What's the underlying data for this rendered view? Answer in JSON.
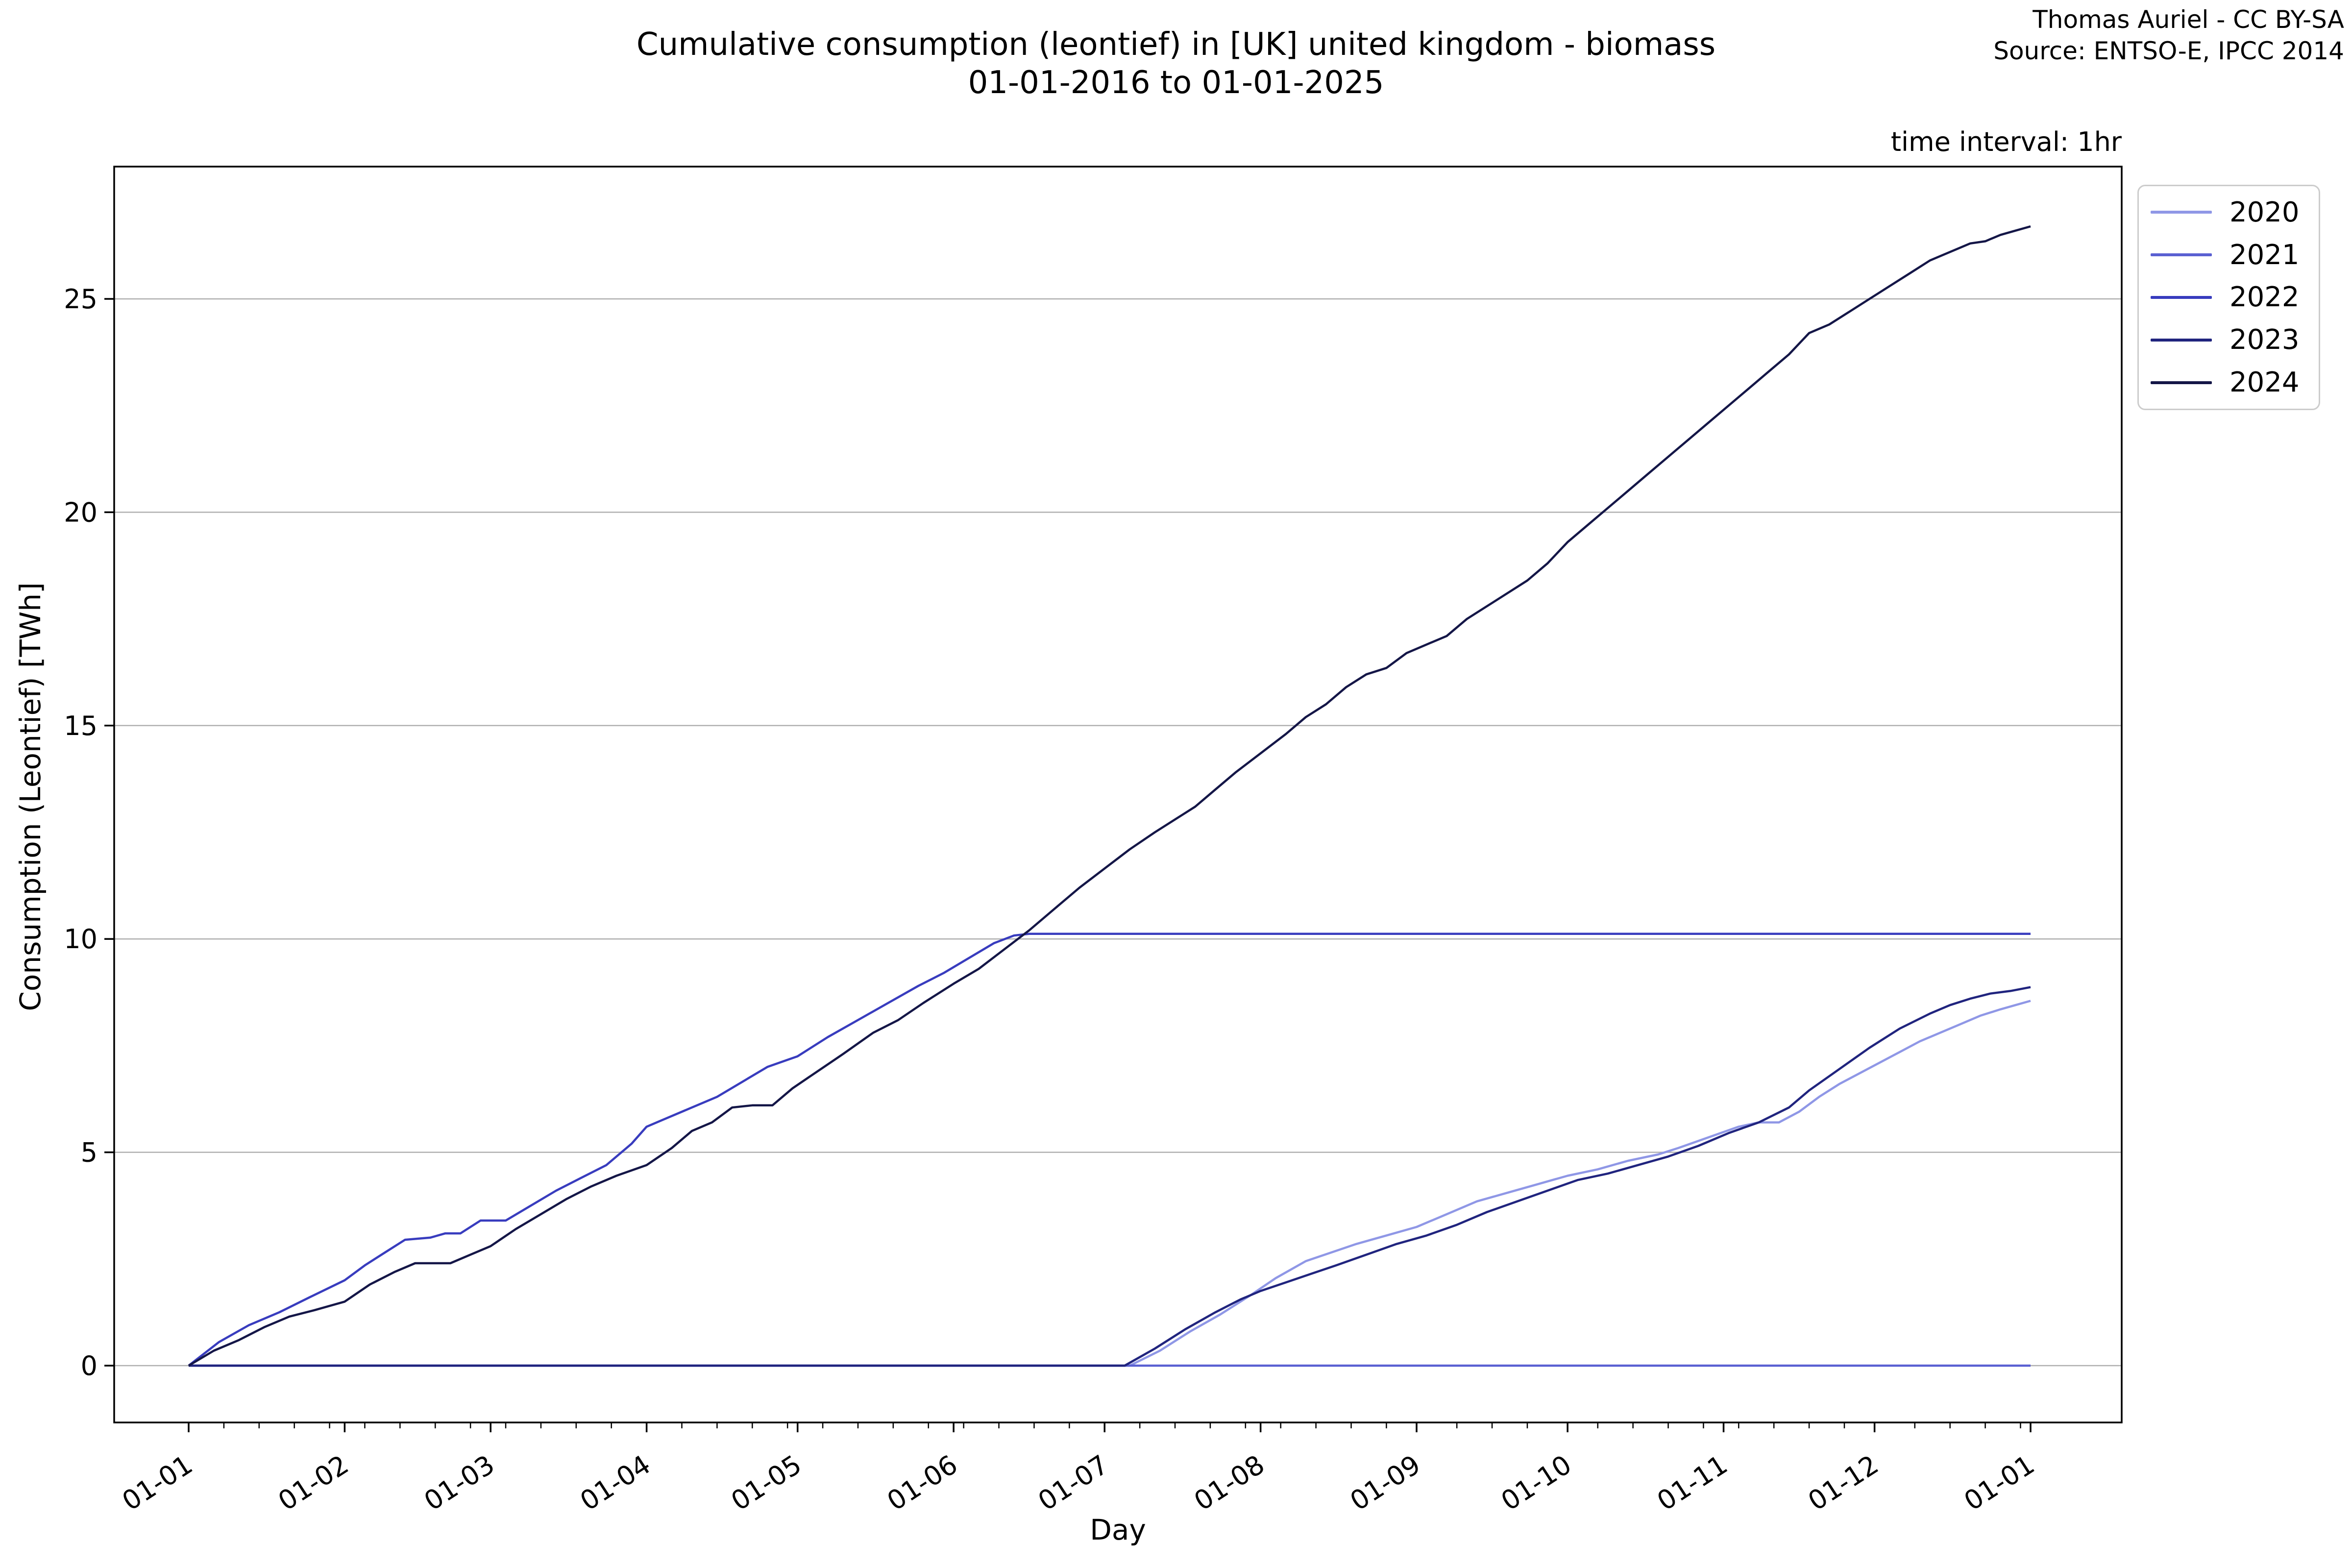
{
  "header": {
    "title_line1": "Cumulative consumption (leontief) in [UK] united kingdom - biomass",
    "title_line2": "01-01-2016 to 01-01-2025",
    "attribution_line1": "Thomas Auriel - CC BY-SA",
    "attribution_line2": "Source: ENTSO-E, IPCC 2014",
    "note": "time interval: 1hr"
  },
  "axes": {
    "xlabel": "Day",
    "ylabel": "Consumption (Leontief) [TWh]",
    "x_tick_labels": [
      "01-01",
      "01-02",
      "01-03",
      "01-04",
      "01-05",
      "01-06",
      "01-07",
      "01-08",
      "01-09",
      "01-10",
      "01-11",
      "01-12",
      "01-01"
    ],
    "y_tick_labels": [
      "0",
      "5",
      "10",
      "15",
      "20",
      "25"
    ]
  },
  "legend": {
    "entries": [
      {
        "label": "2020",
        "color": "#8f97e6"
      },
      {
        "label": "2021",
        "color": "#5a60d2"
      },
      {
        "label": "2022",
        "color": "#383cbe"
      },
      {
        "label": "2023",
        "color": "#20247e"
      },
      {
        "label": "2024",
        "color": "#141647"
      }
    ]
  },
  "chart_data": {
    "type": "line",
    "title": "Cumulative consumption (leontief) in [UK] united kingdom - biomass 01-01-2016 to 01-01-2025",
    "xlabel": "Day",
    "ylabel": "Consumption (Leontief) [TWh]",
    "x_unit": "day-of-year",
    "xlim_days": [
      0,
      366
    ],
    "ylim": [
      -1.3,
      28.1
    ],
    "y_ticks": [
      0,
      5,
      10,
      15,
      20,
      25
    ],
    "x_tick_days": [
      0,
      31,
      60,
      91,
      121,
      152,
      182,
      213,
      244,
      274,
      305,
      335,
      366
    ],
    "grid": "horizontal",
    "legend_position": "upper right, outside axes",
    "colors": {
      "grid": "#b0b0b0",
      "spine": "#000000"
    },
    "series": [
      {
        "name": "2020",
        "color": "#8f97e6",
        "points": [
          [
            0,
            0
          ],
          [
            187,
            0
          ],
          [
            193,
            0.35
          ],
          [
            199,
            0.8
          ],
          [
            205,
            1.2
          ],
          [
            211,
            1.65
          ],
          [
            216,
            2.05
          ],
          [
            222,
            2.45
          ],
          [
            227,
            2.65
          ],
          [
            232,
            2.85
          ],
          [
            238,
            3.05
          ],
          [
            244,
            3.25
          ],
          [
            250,
            3.55
          ],
          [
            256,
            3.85
          ],
          [
            262,
            4.05
          ],
          [
            268,
            4.25
          ],
          [
            274,
            4.45
          ],
          [
            280,
            4.6
          ],
          [
            286,
            4.8
          ],
          [
            292,
            4.95
          ],
          [
            296,
            5.1
          ],
          [
            302,
            5.35
          ],
          [
            308,
            5.6
          ],
          [
            312,
            5.7
          ],
          [
            316,
            5.7
          ],
          [
            320,
            5.95
          ],
          [
            324,
            6.3
          ],
          [
            328,
            6.6
          ],
          [
            332,
            6.85
          ],
          [
            336,
            7.1
          ],
          [
            340,
            7.35
          ],
          [
            344,
            7.6
          ],
          [
            348,
            7.8
          ],
          [
            352,
            8.0
          ],
          [
            356,
            8.2
          ],
          [
            360,
            8.35
          ],
          [
            363,
            8.45
          ],
          [
            366,
            8.55
          ]
        ]
      },
      {
        "name": "2021",
        "color": "#5a60d2",
        "points": [
          [
            0,
            0
          ],
          [
            366,
            0
          ]
        ]
      },
      {
        "name": "2022",
        "color": "#383cbe",
        "points": [
          [
            0,
            0
          ],
          [
            6,
            0.55
          ],
          [
            12,
            0.95
          ],
          [
            18,
            1.25
          ],
          [
            24,
            1.6
          ],
          [
            31,
            2.0
          ],
          [
            35,
            2.35
          ],
          [
            39,
            2.65
          ],
          [
            43,
            2.95
          ],
          [
            48,
            3.0
          ],
          [
            51,
            3.1
          ],
          [
            54,
            3.1
          ],
          [
            58,
            3.4
          ],
          [
            63,
            3.4
          ],
          [
            68,
            3.75
          ],
          [
            73,
            4.1
          ],
          [
            78,
            4.4
          ],
          [
            83,
            4.7
          ],
          [
            88,
            5.2
          ],
          [
            91,
            5.6
          ],
          [
            95,
            5.8
          ],
          [
            100,
            6.05
          ],
          [
            105,
            6.3
          ],
          [
            110,
            6.65
          ],
          [
            115,
            7.0
          ],
          [
            121,
            7.25
          ],
          [
            127,
            7.7
          ],
          [
            133,
            8.1
          ],
          [
            139,
            8.5
          ],
          [
            145,
            8.9
          ],
          [
            150,
            9.2
          ],
          [
            155,
            9.55
          ],
          [
            160,
            9.9
          ],
          [
            164,
            10.08
          ],
          [
            167,
            10.12
          ],
          [
            366,
            10.12
          ]
        ]
      },
      {
        "name": "2023",
        "color": "#20247e",
        "points": [
          [
            0,
            0
          ],
          [
            186,
            0
          ],
          [
            192,
            0.4
          ],
          [
            198,
            0.85
          ],
          [
            204,
            1.25
          ],
          [
            209,
            1.55
          ],
          [
            213,
            1.75
          ],
          [
            218,
            1.95
          ],
          [
            223,
            2.15
          ],
          [
            228,
            2.35
          ],
          [
            234,
            2.6
          ],
          [
            240,
            2.85
          ],
          [
            246,
            3.05
          ],
          [
            252,
            3.3
          ],
          [
            258,
            3.6
          ],
          [
            264,
            3.85
          ],
          [
            270,
            4.1
          ],
          [
            276,
            4.35
          ],
          [
            282,
            4.5
          ],
          [
            288,
            4.7
          ],
          [
            294,
            4.9
          ],
          [
            300,
            5.15
          ],
          [
            306,
            5.45
          ],
          [
            312,
            5.7
          ],
          [
            318,
            6.05
          ],
          [
            322,
            6.45
          ],
          [
            328,
            6.95
          ],
          [
            334,
            7.45
          ],
          [
            340,
            7.9
          ],
          [
            346,
            8.25
          ],
          [
            350,
            8.45
          ],
          [
            354,
            8.6
          ],
          [
            358,
            8.72
          ],
          [
            362,
            8.78
          ],
          [
            366,
            8.87
          ]
        ]
      },
      {
        "name": "2024",
        "color": "#141647",
        "points": [
          [
            0,
            0
          ],
          [
            5,
            0.35
          ],
          [
            10,
            0.6
          ],
          [
            15,
            0.9
          ],
          [
            20,
            1.15
          ],
          [
            25,
            1.3
          ],
          [
            31,
            1.5
          ],
          [
            36,
            1.9
          ],
          [
            41,
            2.2
          ],
          [
            45,
            2.4
          ],
          [
            52,
            2.4
          ],
          [
            56,
            2.6
          ],
          [
            60,
            2.8
          ],
          [
            65,
            3.2
          ],
          [
            70,
            3.55
          ],
          [
            75,
            3.9
          ],
          [
            80,
            4.2
          ],
          [
            85,
            4.45
          ],
          [
            91,
            4.7
          ],
          [
            96,
            5.1
          ],
          [
            100,
            5.5
          ],
          [
            104,
            5.7
          ],
          [
            108,
            6.05
          ],
          [
            112,
            6.1
          ],
          [
            116,
            6.1
          ],
          [
            120,
            6.5
          ],
          [
            125,
            6.9
          ],
          [
            130,
            7.3
          ],
          [
            136,
            7.8
          ],
          [
            141,
            8.1
          ],
          [
            146,
            8.5
          ],
          [
            152,
            8.95
          ],
          [
            157,
            9.3
          ],
          [
            162,
            9.75
          ],
          [
            167,
            10.2
          ],
          [
            172,
            10.7
          ],
          [
            177,
            11.2
          ],
          [
            182,
            11.65
          ],
          [
            187,
            12.1
          ],
          [
            192,
            12.5
          ],
          [
            196,
            12.8
          ],
          [
            200,
            13.1
          ],
          [
            204,
            13.5
          ],
          [
            208,
            13.9
          ],
          [
            213,
            14.35
          ],
          [
            218,
            14.8
          ],
          [
            222,
            15.2
          ],
          [
            226,
            15.5
          ],
          [
            230,
            15.9
          ],
          [
            234,
            16.2
          ],
          [
            238,
            16.35
          ],
          [
            242,
            16.7
          ],
          [
            246,
            16.9
          ],
          [
            250,
            17.1
          ],
          [
            254,
            17.5
          ],
          [
            258,
            17.8
          ],
          [
            262,
            18.1
          ],
          [
            266,
            18.4
          ],
          [
            270,
            18.8
          ],
          [
            274,
            19.3
          ],
          [
            278,
            19.7
          ],
          [
            282,
            20.1
          ],
          [
            286,
            20.5
          ],
          [
            290,
            20.9
          ],
          [
            294,
            21.3
          ],
          [
            298,
            21.7
          ],
          [
            302,
            22.1
          ],
          [
            306,
            22.5
          ],
          [
            310,
            22.9
          ],
          [
            314,
            23.3
          ],
          [
            318,
            23.7
          ],
          [
            322,
            24.2
          ],
          [
            326,
            24.4
          ],
          [
            330,
            24.7
          ],
          [
            334,
            25.0
          ],
          [
            338,
            25.3
          ],
          [
            342,
            25.6
          ],
          [
            346,
            25.9
          ],
          [
            350,
            26.1
          ],
          [
            354,
            26.3
          ],
          [
            357,
            26.35
          ],
          [
            360,
            26.5
          ],
          [
            363,
            26.6
          ],
          [
            366,
            26.7
          ]
        ]
      }
    ]
  }
}
